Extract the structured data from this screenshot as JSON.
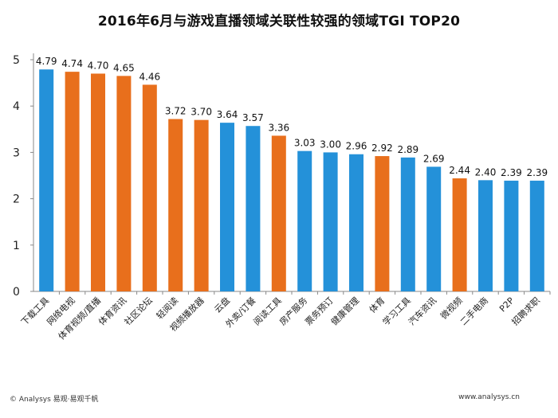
{
  "chart_data": {
    "type": "bar",
    "title": "2016年6月与游戏直播领域关联性较强的领域TGI TOP20",
    "categories": [
      "下载工具",
      "网络电视",
      "体育视频/直播",
      "体育资讯",
      "社区论坛",
      "轻阅读",
      "视频播放器",
      "云盘",
      "外卖/订餐",
      "阅读工具",
      "房产服务",
      "票务预订",
      "健康管理",
      "体育",
      "学习工具",
      "汽车资讯",
      "微视频",
      "二手电商",
      "P2P",
      "招聘求职"
    ],
    "values": [
      4.79,
      4.74,
      4.7,
      4.65,
      4.46,
      3.72,
      3.7,
      3.64,
      3.57,
      3.36,
      3.03,
      3.0,
      2.96,
      2.92,
      2.89,
      2.69,
      2.44,
      2.4,
      2.39,
      2.39
    ],
    "value_labels": [
      "4.79",
      "4.74",
      "4.70",
      "4.65",
      "4.46",
      "3.72",
      "3.70",
      "3.64",
      "3.57",
      "3.36",
      "3.03",
      "3.00",
      "2.96",
      "2.92",
      "2.89",
      "2.69",
      "2.44",
      "2.40",
      "2.39",
      "2.39"
    ],
    "bar_colors": [
      "blue",
      "orange",
      "orange",
      "orange",
      "orange",
      "orange",
      "orange",
      "blue",
      "blue",
      "orange",
      "blue",
      "blue",
      "blue",
      "orange",
      "blue",
      "blue",
      "orange",
      "blue",
      "blue",
      "blue"
    ],
    "colors": {
      "blue": "#2491d9",
      "orange": "#e86f1c"
    },
    "ylim": [
      0,
      5
    ],
    "yticks": [
      "0",
      "1",
      "2",
      "3",
      "4",
      "5"
    ],
    "grid": false
  },
  "footer": {
    "left": "© Analysys 易观·易观千帆",
    "right": "www.analysys.cn"
  }
}
